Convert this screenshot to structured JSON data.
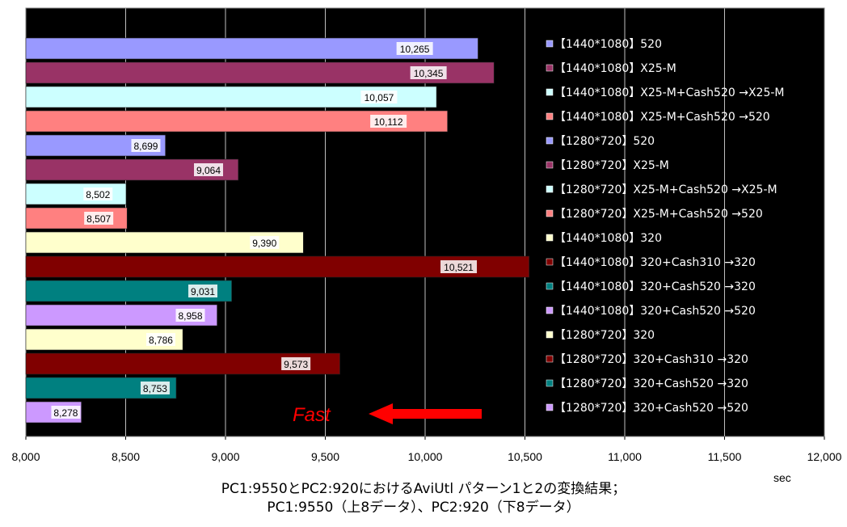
{
  "chart_data": {
    "type": "bar",
    "orientation": "horizontal",
    "xlim": [
      8000,
      12000
    ],
    "x_ticks": [
      "8,000",
      "8,500",
      "9,000",
      "9,500",
      "10,000",
      "10,500",
      "11,000",
      "11,500",
      "12,000"
    ],
    "x_unit": "sec",
    "grid": true,
    "legend_position": "right",
    "plot_background": "#000000",
    "series": [
      {
        "name": "【1440*1080】520",
        "value": 10265,
        "label": "10,265",
        "color": "#9999ff"
      },
      {
        "name": "【1440*1080】X25-M",
        "value": 10345,
        "label": "10,345",
        "color": "#993366"
      },
      {
        "name": "【1440*1080】X25-M+Cash520 →X25-M",
        "value": 10057,
        "label": "10,057",
        "color": "#ccffff"
      },
      {
        "name": "【1440*1080】X25-M+Cash520 →520",
        "value": 10112,
        "label": "10,112",
        "color": "#ff8080"
      },
      {
        "name": "【1280*720】520",
        "value": 8699,
        "label": "8,699",
        "color": "#9999ff"
      },
      {
        "name": "【1280*720】X25-M",
        "value": 9064,
        "label": "9,064",
        "color": "#993366"
      },
      {
        "name": "【1280*720】X25-M+Cash520 →X25-M",
        "value": 8502,
        "label": "8,502",
        "color": "#ccffff"
      },
      {
        "name": "【1280*720】X25-M+Cash520 →520",
        "value": 8507,
        "label": "8,507",
        "color": "#ff8080"
      },
      {
        "name": "【1440*1080】320",
        "value": 9390,
        "label": "9,390",
        "color": "#ffffcc"
      },
      {
        "name": "【1440*1080】320+Cash310 →320",
        "value": 10521,
        "label": "10,521",
        "color": "#800000"
      },
      {
        "name": "【1440*1080】320+Cash520 →320",
        "value": 9031,
        "label": "9,031",
        "color": "#008080"
      },
      {
        "name": "【1440*1080】320+Cash520 →520",
        "value": 8958,
        "label": "8,958",
        "color": "#cc99ff"
      },
      {
        "name": "【1280*720】320",
        "value": 8786,
        "label": "8,786",
        "color": "#ffffcc"
      },
      {
        "name": "【1280*720】320+Cash310 →320",
        "value": 9573,
        "label": "9,573",
        "color": "#800000"
      },
      {
        "name": "【1280*720】320+Cash520 →320",
        "value": 8753,
        "label": "8,753",
        "color": "#008080"
      },
      {
        "name": "【1280*720】320+Cash520 →520",
        "value": 8278,
        "label": "8,278",
        "color": "#cc99ff"
      }
    ],
    "annotation": {
      "text": "Fast",
      "color": "#ff0000"
    }
  },
  "caption": {
    "line1": "PC1:9550とPC2:920におけるAviUtl パターン1と2の変換結果；",
    "line2": "PC1:9550（上8データ）、PC2:920（下8データ）"
  }
}
